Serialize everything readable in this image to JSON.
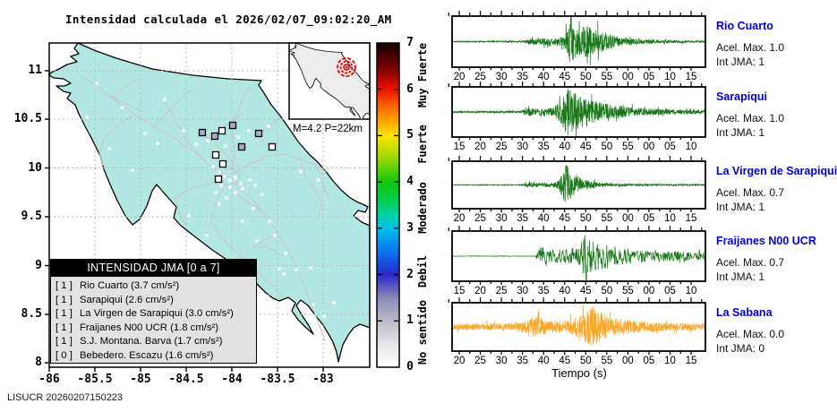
{
  "title": "Intensidad calculada el 2026/02/07_09:02:20_AM",
  "watermark": "LISUCR 20260207150223",
  "colors": {
    "land": "#b3e7e3",
    "inset_land": "#ececec",
    "roads": "#c8c8c8",
    "grid": "#b9b9b9",
    "station_label": "#0000e6",
    "trace_green": "#187818",
    "trace_orange": "#ffa728",
    "intensity1_fill": "#a8aace",
    "epicenter": "#e60000"
  },
  "chart_data": {
    "type": "composite",
    "event": {
      "label": "M=4.2 P=22km",
      "magnitude": 4.2,
      "depth_km": 22
    },
    "map_axes": {
      "x_ticks": [
        "-86",
        "-85.5",
        "-85",
        "-84.5",
        "-84",
        "-83.5",
        "-83"
      ],
      "y_ticks": [
        "11",
        "10.5",
        "10",
        "9.5",
        "9",
        "8.5",
        "8"
      ],
      "x_range": [
        -86,
        -82.5
      ],
      "y_range": [
        8,
        11.27
      ],
      "grid": "dashed, every 0.5 degree"
    },
    "intensity_table": {
      "header": "INTENSIDAD JMA [0 a 7]",
      "rows": [
        {
          "int": "[ 1 ]",
          "label": "Rio Cuarto (3.7 cm/s²)"
        },
        {
          "int": "[ 1 ]",
          "label": "Sarapiqui (2.6 cm/s²)"
        },
        {
          "int": "[ 1 ]",
          "label": "La Virgen de Sarapiqui (3.0 cm/s²)"
        },
        {
          "int": "[ 1 ]",
          "label": "Fraijanes N00 UCR (1.8 cm/s²)"
        },
        {
          "int": "[ 1 ]",
          "label": "S.J. Montana. Barva (1.7 cm/s²)"
        },
        {
          "int": "[ 0 ]",
          "label": "Bebedero. Escazu (1.6 cm/s²)"
        }
      ]
    },
    "colorbar": {
      "numbers": [
        "0",
        "1",
        "2",
        "3",
        "4",
        "5",
        "6",
        "7"
      ],
      "categories": [
        "No sentido",
        "Debil",
        "Moderado",
        "Fuerte",
        "Muy Fuerte"
      ],
      "gradient": [
        [
          0,
          "#ffffff"
        ],
        [
          0.07,
          "#e6e6e6"
        ],
        [
          0.143,
          "#bcbcc8"
        ],
        [
          0.214,
          "#8888b8"
        ],
        [
          0.286,
          "#2828cc"
        ],
        [
          0.357,
          "#0a74f0"
        ],
        [
          0.429,
          "#00c0ea"
        ],
        [
          0.47,
          "#00d2a8"
        ],
        [
          0.5,
          "#00d060"
        ],
        [
          0.571,
          "#10c810"
        ],
        [
          0.643,
          "#96d800"
        ],
        [
          0.714,
          "#ffe400"
        ],
        [
          0.75,
          "#ffae00"
        ],
        [
          0.786,
          "#ff8000"
        ],
        [
          0.857,
          "#ee1000"
        ],
        [
          0.929,
          "#6e0000"
        ],
        [
          1,
          "#140000"
        ]
      ]
    },
    "time_axis_label": "Tiempo (s)",
    "waveforms": [
      {
        "name": "Rio Cuarto",
        "acel": "Acel. Max. 1.0",
        "jma": "Int JMA: 1",
        "color": "#187818",
        "ticks": [
          "20",
          "25",
          "30",
          "35",
          "40",
          "45",
          "50",
          "55",
          "00",
          "05",
          "10",
          "15"
        ],
        "env": [
          [
            0,
            0.025
          ],
          [
            0.28,
            0.035
          ],
          [
            0.31,
            0.13
          ],
          [
            0.4,
            0.16
          ],
          [
            0.445,
            0.22
          ],
          [
            0.465,
            1.0
          ],
          [
            0.5,
            0.55
          ],
          [
            0.535,
            0.75
          ],
          [
            0.565,
            0.5
          ],
          [
            0.6,
            0.42
          ],
          [
            0.65,
            0.22
          ],
          [
            0.72,
            0.12
          ],
          [
            0.82,
            0.07
          ],
          [
            1,
            0.045
          ]
        ],
        "seed": 11,
        "points": 1150,
        "amp": 26
      },
      {
        "name": "Sarapiqui",
        "acel": "Acel. Max. 1.0",
        "jma": "Int JMA: 1",
        "color": "#187818",
        "ticks": [
          "15",
          "20",
          "25",
          "30",
          "35",
          "40",
          "45",
          "50",
          "55",
          "00",
          "05",
          "10"
        ],
        "env": [
          [
            0,
            0.03
          ],
          [
            0.27,
            0.04
          ],
          [
            0.29,
            0.14
          ],
          [
            0.4,
            0.17
          ],
          [
            0.43,
            0.55
          ],
          [
            0.455,
            1.0
          ],
          [
            0.49,
            0.8
          ],
          [
            0.53,
            0.55
          ],
          [
            0.58,
            0.42
          ],
          [
            0.63,
            0.3
          ],
          [
            0.72,
            0.17
          ],
          [
            0.85,
            0.1
          ],
          [
            1,
            0.07
          ]
        ],
        "seed": 23,
        "points": 1150,
        "amp": 27
      },
      {
        "name": "La Virgen de Sarapiqui",
        "acel": "Acel. Max. 0.7",
        "jma": "Int JMA: 1",
        "color": "#187818",
        "ticks": [
          "20",
          "25",
          "30",
          "35",
          "40",
          "45",
          "50",
          "55",
          "00",
          "05",
          "10",
          "15"
        ],
        "env": [
          [
            0,
            0.015
          ],
          [
            0.27,
            0.02
          ],
          [
            0.3,
            0.09
          ],
          [
            0.41,
            0.11
          ],
          [
            0.435,
            0.5
          ],
          [
            0.45,
            1.0
          ],
          [
            0.475,
            0.55
          ],
          [
            0.52,
            0.25
          ],
          [
            0.58,
            0.1
          ],
          [
            0.68,
            0.05
          ],
          [
            1,
            0.03
          ]
        ],
        "seed": 7,
        "points": 1150,
        "amp": 25
      },
      {
        "name": "Fraijanes N00 UCR",
        "acel": "Acel. Max. 0.7",
        "jma": "Int JMA: 1",
        "color": "#187818",
        "ticks": [
          "15",
          "20",
          "25",
          "30",
          "35",
          "40",
          "45",
          "50",
          "55",
          "00",
          "05",
          "10"
        ],
        "env": [
          [
            0,
            0.012
          ],
          [
            0.33,
            0.012
          ],
          [
            0.345,
            0.42
          ],
          [
            0.38,
            0.28
          ],
          [
            0.46,
            0.3
          ],
          [
            0.5,
            0.35
          ],
          [
            0.525,
            1.0
          ],
          [
            0.56,
            0.6
          ],
          [
            0.6,
            0.55
          ],
          [
            0.65,
            0.38
          ],
          [
            0.72,
            0.3
          ],
          [
            0.85,
            0.22
          ],
          [
            1,
            0.15
          ]
        ],
        "seed": 31,
        "points": 620,
        "amp": 27
      },
      {
        "name": "La Sabana",
        "acel": "Acel. Max. 0.0",
        "jma": "Int JMA: 0",
        "color": "#ffa728",
        "ticks": [
          "20",
          "25",
          "30",
          "35",
          "40",
          "45",
          "50",
          "55",
          "00",
          "05",
          "10",
          "15"
        ],
        "env": [
          [
            0,
            0.14
          ],
          [
            0.25,
            0.16
          ],
          [
            0.3,
            0.3
          ],
          [
            0.33,
            0.55
          ],
          [
            0.36,
            0.35
          ],
          [
            0.42,
            0.3
          ],
          [
            0.47,
            0.35
          ],
          [
            0.52,
            0.6
          ],
          [
            0.55,
            1.0
          ],
          [
            0.585,
            0.7
          ],
          [
            0.62,
            0.45
          ],
          [
            0.68,
            0.35
          ],
          [
            0.78,
            0.22
          ],
          [
            0.9,
            0.18
          ],
          [
            1,
            0.16
          ]
        ],
        "seed": 5,
        "points": 1250,
        "amp": 25
      }
    ],
    "map_markers": {
      "intensity1_stations": [
        [
          260,
          140
        ],
        [
          240,
          152
        ],
        [
          226,
          148
        ],
        [
          289,
          149
        ],
        [
          270,
          164
        ]
      ],
      "intensity0_stations": [
        [
          248,
          146
        ],
        [
          304,
          164
        ],
        [
          241,
          173
        ],
        [
          249,
          183
        ],
        [
          244,
          200
        ]
      ],
      "other_stations": [
        [
          108,
          93
        ],
        [
          137,
          120
        ],
        [
          184,
          111
        ],
        [
          162,
          149
        ],
        [
          122,
          166
        ],
        [
          97,
          131
        ],
        [
          148,
          190
        ],
        [
          176,
          160
        ],
        [
          205,
          146
        ],
        [
          219,
          161
        ],
        [
          232,
          157
        ],
        [
          252,
          163
        ],
        [
          266,
          153
        ],
        [
          278,
          146
        ],
        [
          300,
          141
        ],
        [
          238,
          186
        ],
        [
          245,
          192
        ],
        [
          251,
          197
        ],
        [
          257,
          201
        ],
        [
          263,
          198
        ],
        [
          269,
          205
        ],
        [
          257,
          209
        ],
        [
          247,
          207
        ],
        [
          263,
          215
        ],
        [
          271,
          211
        ],
        [
          253,
          221
        ],
        [
          241,
          215
        ],
        [
          279,
          201
        ],
        [
          285,
          207
        ],
        [
          293,
          217
        ],
        [
          301,
          247
        ],
        [
          307,
          263
        ],
        [
          287,
          269
        ],
        [
          319,
          283
        ],
        [
          331,
          301
        ],
        [
          347,
          299
        ],
        [
          312,
          300
        ],
        [
          317,
          306
        ],
        [
          350,
          340
        ],
        [
          373,
          338
        ],
        [
          362,
          353
        ],
        [
          299,
          331
        ],
        [
          231,
          263
        ],
        [
          211,
          241
        ],
        [
          191,
          231
        ],
        [
          336,
          191
        ],
        [
          356,
          201
        ],
        [
          271,
          247
        ],
        [
          283,
          233
        ],
        [
          245,
          228
        ]
      ]
    }
  }
}
